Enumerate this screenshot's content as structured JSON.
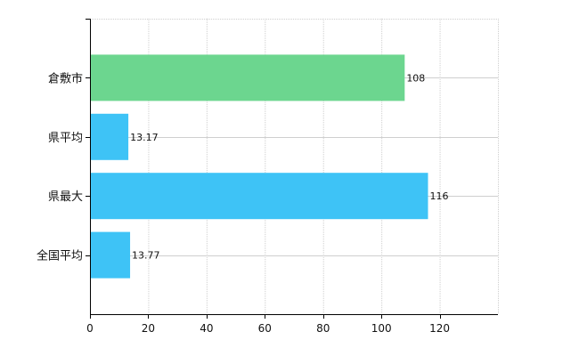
{
  "chart_data": {
    "type": "bar",
    "orientation": "horizontal",
    "categories": [
      "倉敷市",
      "県平均",
      "県最大",
      "全国平均"
    ],
    "values": [
      108,
      13.17,
      116,
      13.77
    ],
    "data_labels": [
      "108",
      "13.17",
      "116",
      "13.77"
    ],
    "colors": [
      "#6cd68f",
      "#3ec3f6",
      "#3ec3f6",
      "#3ec3f6"
    ],
    "xlim": [
      0,
      140
    ],
    "xticks": [
      0,
      20,
      40,
      60,
      80,
      100,
      120
    ],
    "grid": true,
    "legend": "none"
  }
}
